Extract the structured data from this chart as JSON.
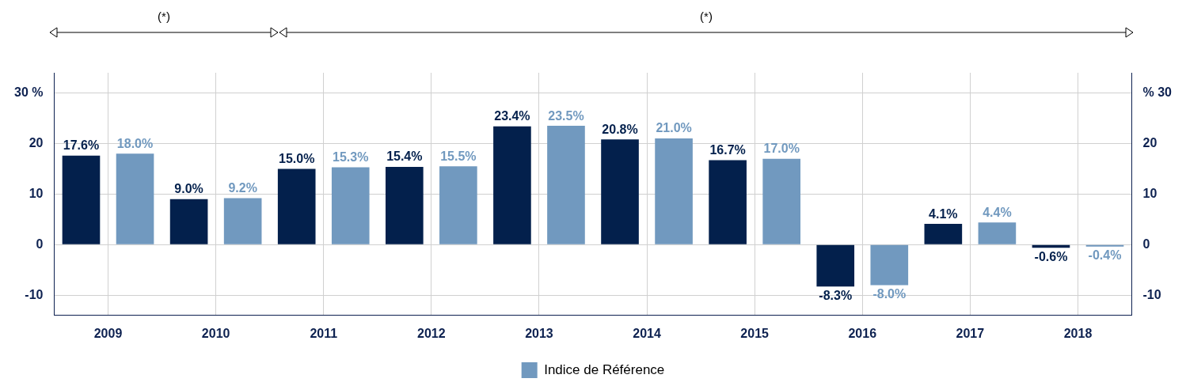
{
  "chart_data": {
    "type": "bar",
    "categories": [
      "2009",
      "2010",
      "2011",
      "2012",
      "2013",
      "2014",
      "2015",
      "2016",
      "2017",
      "2018"
    ],
    "series": [
      {
        "color": "#03204c",
        "values": [
          17.6,
          9.0,
          15.0,
          15.4,
          23.4,
          20.8,
          16.7,
          -8.3,
          4.1,
          -0.6
        ],
        "value_labels": [
          "17.6%",
          "9.0%",
          "15.0%",
          "15.4%",
          "23.4%",
          "20.8%",
          "16.7%",
          "-8.3%",
          "4.1%",
          "-0.6%"
        ]
      },
      {
        "name": "Indice de Référence",
        "color": "#7199bf",
        "values": [
          18.0,
          9.2,
          15.3,
          15.5,
          23.5,
          21.0,
          17.0,
          -8.0,
          4.4,
          -0.4
        ],
        "value_labels": [
          "18.0%",
          "9.2%",
          "15.3%",
          "15.5%",
          "23.5%",
          "21.0%",
          "17.0%",
          "-8.0%",
          "4.4%",
          "-0.4%"
        ]
      }
    ],
    "ylim": [
      -14,
      34
    ],
    "yticks": [
      -10,
      0,
      10,
      20,
      {
        "value": 30,
        "label": "30 %"
      }
    ],
    "y2lim": [
      -14,
      34
    ],
    "y2ticks": [
      -10,
      0,
      10,
      20,
      {
        "value": 30,
        "label": "% 30"
      }
    ],
    "grid": true,
    "legend": "bottom",
    "annotations": [
      "(*)",
      "(*)"
    ]
  }
}
